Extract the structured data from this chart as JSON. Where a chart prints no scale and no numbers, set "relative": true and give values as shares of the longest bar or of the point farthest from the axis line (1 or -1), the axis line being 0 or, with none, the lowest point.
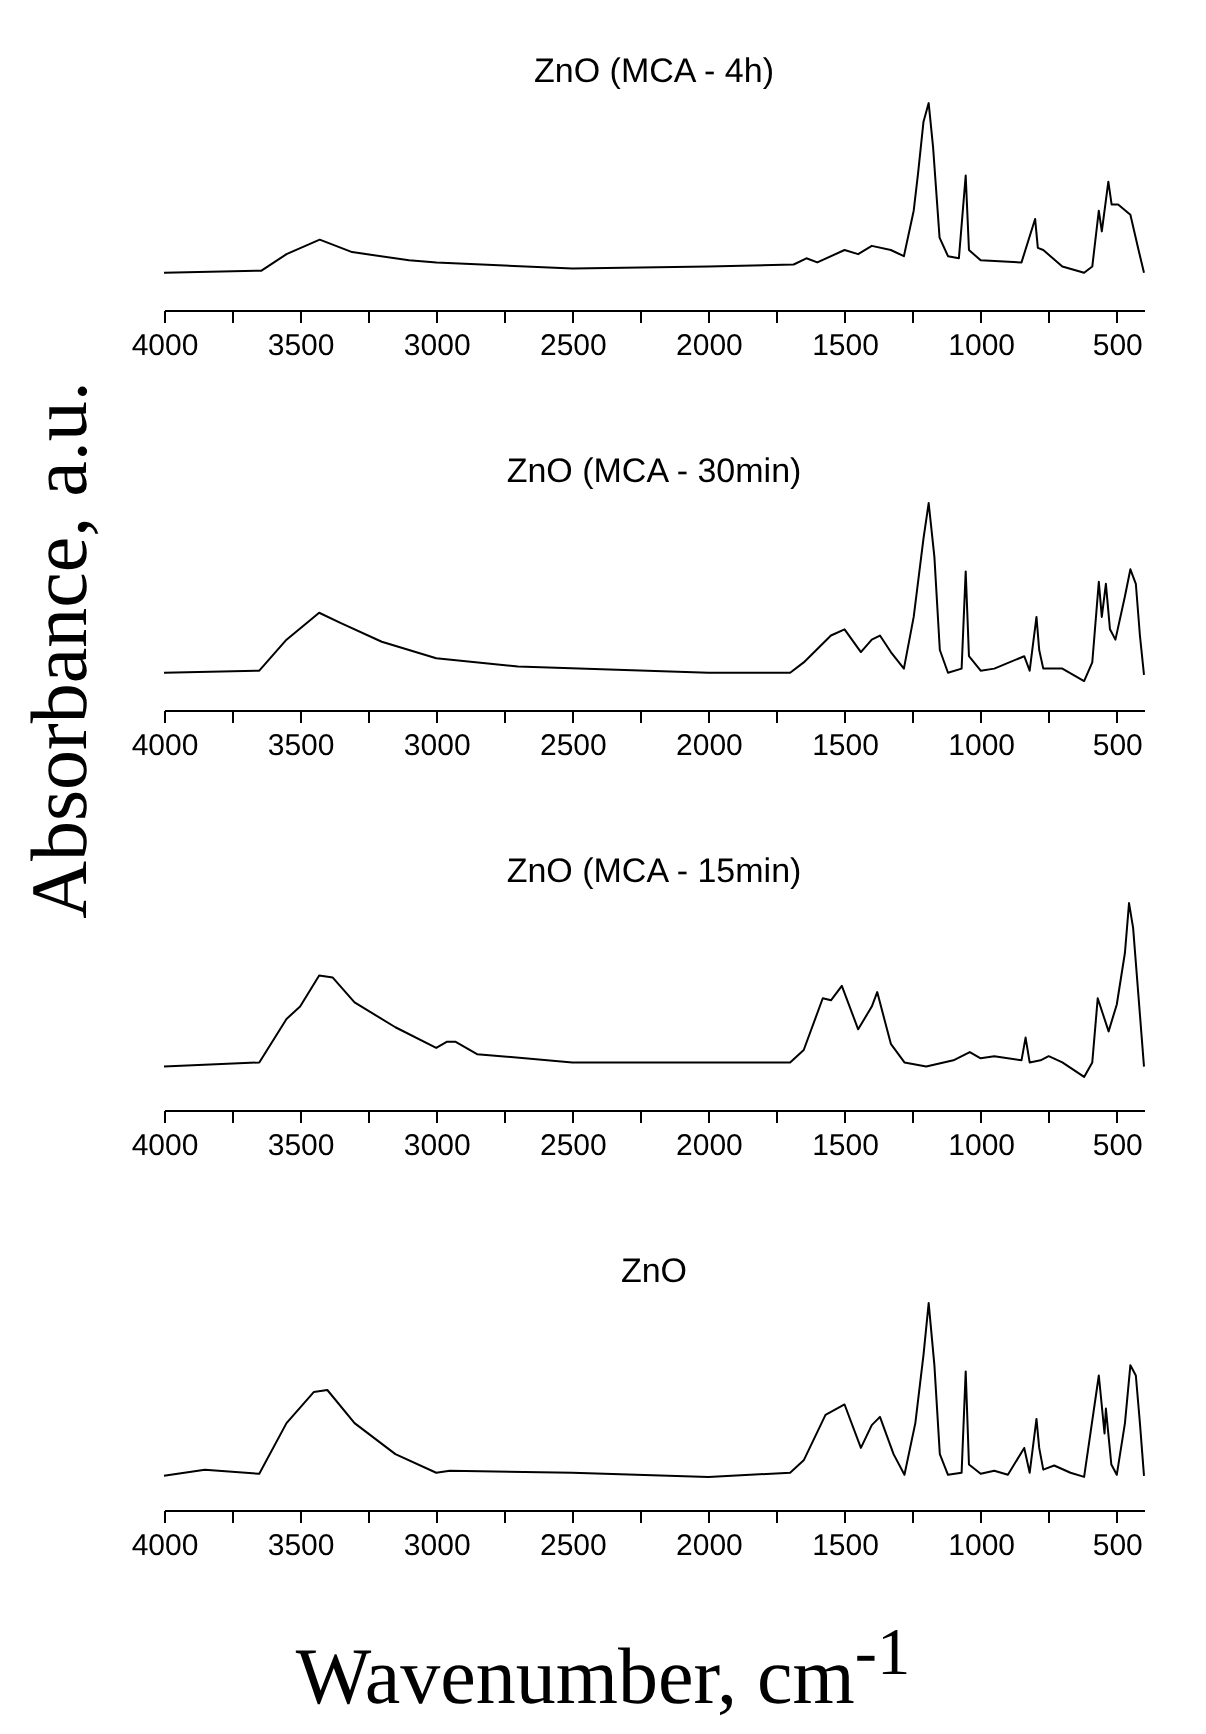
{
  "chart_data": [
    {
      "type": "line",
      "title": "ZnO (MCA - 4h)",
      "relative": true,
      "xlim": [
        4000,
        400
      ],
      "xticks": [
        4000,
        {
          "value": 3750,
          "label": null
        },
        3500,
        {
          "value": 3250,
          "label": null
        },
        3000,
        {
          "value": 2750,
          "label": null
        },
        2500,
        {
          "value": 2250,
          "label": null
        },
        2000,
        {
          "value": 1750,
          "label": null
        },
        1500,
        {
          "value": 1250,
          "label": null
        },
        1000,
        {
          "value": 750,
          "label": null
        },
        500
      ],
      "x": [
        4000,
        3642,
        3550,
        3428,
        3309,
        3100,
        2999,
        2500,
        2000,
        1687,
        1640,
        1600,
        1500,
        1450,
        1400,
        1330,
        1282,
        1246,
        1230,
        1210,
        1191,
        1175,
        1151,
        1120,
        1080,
        1055,
        1043,
        1000,
        850,
        800,
        790,
        770,
        700,
        620,
        590,
        566,
        555,
        531,
        519,
        495,
        450,
        420,
        400
      ],
      "series": [
        {
          "color": "#000000",
          "values": [
            0.18,
            0.19,
            0.27,
            0.34,
            0.28,
            0.24,
            0.23,
            0.2,
            0.21,
            0.22,
            0.25,
            0.23,
            0.29,
            0.27,
            0.31,
            0.29,
            0.26,
            0.48,
            0.66,
            0.91,
            1.0,
            0.79,
            0.35,
            0.26,
            0.25,
            0.65,
            0.29,
            0.24,
            0.23,
            0.44,
            0.3,
            0.29,
            0.21,
            0.18,
            0.21,
            0.48,
            0.38,
            0.62,
            0.51,
            0.51,
            0.46,
            0.29,
            0.18
          ]
        }
      ]
    },
    {
      "type": "line",
      "title": "ZnO (MCA - 30min)",
      "relative": true,
      "xlim": [
        4000,
        400
      ],
      "xticks": [
        4000,
        {
          "value": 3750,
          "label": null
        },
        3500,
        {
          "value": 3250,
          "label": null
        },
        3000,
        {
          "value": 2750,
          "label": null
        },
        2500,
        {
          "value": 2250,
          "label": null
        },
        2000,
        {
          "value": 1750,
          "label": null
        },
        1500,
        {
          "value": 1250,
          "label": null
        },
        1000,
        {
          "value": 750,
          "label": null
        },
        500
      ],
      "x": [
        4000,
        3650,
        3550,
        3430,
        3350,
        3200,
        3000,
        2700,
        2000,
        1700,
        1650,
        1550,
        1500,
        1440,
        1400,
        1370,
        1330,
        1282,
        1246,
        1210,
        1191,
        1170,
        1150,
        1120,
        1070,
        1055,
        1043,
        1000,
        950,
        840,
        820,
        795,
        785,
        770,
        700,
        620,
        590,
        566,
        555,
        540,
        525,
        505,
        470,
        450,
        430,
        415,
        400
      ],
      "series": [
        {
          "color": "#000000",
          "values": [
            0.18,
            0.19,
            0.34,
            0.47,
            0.42,
            0.33,
            0.25,
            0.21,
            0.18,
            0.18,
            0.23,
            0.36,
            0.39,
            0.28,
            0.34,
            0.36,
            0.28,
            0.2,
            0.45,
            0.83,
            1.0,
            0.74,
            0.29,
            0.18,
            0.2,
            0.67,
            0.26,
            0.19,
            0.2,
            0.26,
            0.19,
            0.45,
            0.29,
            0.2,
            0.2,
            0.14,
            0.23,
            0.62,
            0.45,
            0.61,
            0.39,
            0.34,
            0.55,
            0.68,
            0.61,
            0.36,
            0.17
          ]
        }
      ]
    },
    {
      "type": "line",
      "title": "ZnO (MCA - 15min)",
      "relative": true,
      "xlim": [
        4000,
        400
      ],
      "xticks": [
        4000,
        {
          "value": 3750,
          "label": null
        },
        3500,
        {
          "value": 3250,
          "label": null
        },
        3000,
        {
          "value": 2750,
          "label": null
        },
        2500,
        {
          "value": 2250,
          "label": null
        },
        2000,
        {
          "value": 1750,
          "label": null
        },
        1500,
        {
          "value": 1250,
          "label": null
        },
        1000,
        {
          "value": 750,
          "label": null
        },
        500
      ],
      "x": [
        4000,
        3650,
        3550,
        3500,
        3430,
        3380,
        3300,
        3150,
        3000,
        2960,
        2930,
        2850,
        2500,
        2000,
        1700,
        1650,
        1580,
        1550,
        1510,
        1450,
        1400,
        1380,
        1330,
        1280,
        1200,
        1100,
        1040,
        1000,
        950,
        850,
        835,
        820,
        780,
        750,
        700,
        620,
        590,
        570,
        530,
        500,
        470,
        455,
        440,
        400
      ],
      "series": [
        {
          "color": "#000000",
          "values": [
            0.21,
            0.23,
            0.44,
            0.5,
            0.65,
            0.64,
            0.52,
            0.4,
            0.3,
            0.33,
            0.33,
            0.27,
            0.23,
            0.23,
            0.23,
            0.29,
            0.54,
            0.53,
            0.6,
            0.39,
            0.5,
            0.57,
            0.32,
            0.23,
            0.21,
            0.24,
            0.28,
            0.25,
            0.26,
            0.24,
            0.35,
            0.23,
            0.24,
            0.26,
            0.23,
            0.16,
            0.23,
            0.54,
            0.38,
            0.51,
            0.76,
            1.0,
            0.88,
            0.21
          ]
        }
      ]
    },
    {
      "type": "line",
      "title": "ZnO",
      "relative": true,
      "xlim": [
        4000,
        400
      ],
      "xlabel": "Wavenumber, cm$^{-1}$",
      "ylabel": "Absorbance, a.u.",
      "xticks": [
        4000,
        {
          "value": 3750,
          "label": null
        },
        3500,
        {
          "value": 3250,
          "label": null
        },
        3000,
        {
          "value": 2750,
          "label": null
        },
        2500,
        {
          "value": 2250,
          "label": null
        },
        2000,
        {
          "value": 1750,
          "label": null
        },
        1500,
        {
          "value": 1250,
          "label": null
        },
        1000,
        {
          "value": 750,
          "label": null
        },
        500
      ],
      "x": [
        4000,
        3850,
        3650,
        3550,
        3450,
        3400,
        3300,
        3150,
        3000,
        2950,
        2500,
        2000,
        1700,
        1650,
        1570,
        1500,
        1440,
        1400,
        1370,
        1320,
        1280,
        1240,
        1210,
        1191,
        1170,
        1150,
        1120,
        1070,
        1055,
        1043,
        1000,
        950,
        900,
        840,
        820,
        795,
        785,
        770,
        730,
        670,
        620,
        566,
        545,
        540,
        520,
        500,
        470,
        450,
        430,
        415,
        400
      ],
      "series": [
        {
          "color": "#000000",
          "values": [
            0.165,
            0.195,
            0.175,
            0.42,
            0.57,
            0.58,
            0.42,
            0.27,
            0.18,
            0.19,
            0.18,
            0.16,
            0.18,
            0.24,
            0.46,
            0.51,
            0.3,
            0.41,
            0.45,
            0.27,
            0.17,
            0.42,
            0.75,
            1.0,
            0.7,
            0.27,
            0.17,
            0.18,
            0.67,
            0.22,
            0.175,
            0.19,
            0.17,
            0.3,
            0.18,
            0.44,
            0.3,
            0.195,
            0.215,
            0.18,
            0.16,
            0.65,
            0.37,
            0.49,
            0.22,
            0.17,
            0.42,
            0.7,
            0.65,
            0.42,
            0.165
          ]
        }
      ]
    }
  ]
}
